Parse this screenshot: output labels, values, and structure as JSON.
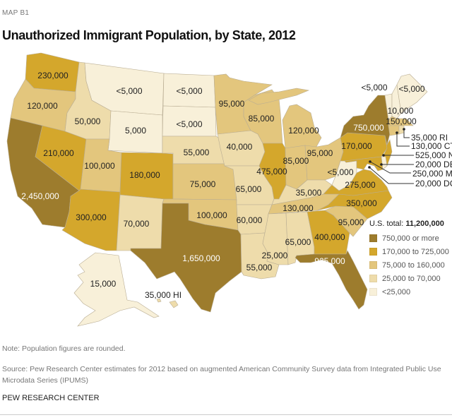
{
  "header": {
    "kicker": "MAP B1",
    "title": "Unauthorized Immigrant Population, by State, 2012"
  },
  "legend": {
    "total_label": "U.S. total:",
    "total_value": "11,200,000",
    "items": [
      {
        "label": "750,000 or more",
        "color": "#9d7c2d"
      },
      {
        "label": "170,000 to 725,000",
        "color": "#d4a72c"
      },
      {
        "label": "75,000 to 160,000",
        "color": "#e3c67d"
      },
      {
        "label": "25,000 to 70,000",
        "color": "#eedcab"
      },
      {
        "label": "<25,000",
        "color": "#f8f0d9"
      }
    ]
  },
  "states": {
    "WA": {
      "label": "230,000",
      "tier": 1
    },
    "OR": {
      "label": "120,000",
      "tier": 2
    },
    "CA": {
      "label": "2,450,000",
      "tier": 0
    },
    "NV": {
      "label": "210,000",
      "tier": 1
    },
    "ID": {
      "label": "50,000",
      "tier": 3
    },
    "MT": {
      "label": "<5,000",
      "tier": 4
    },
    "WY": {
      "label": "5,000",
      "tier": 4
    },
    "UT": {
      "label": "100,000",
      "tier": 2
    },
    "CO": {
      "label": "180,000",
      "tier": 1
    },
    "AZ": {
      "label": "300,000",
      "tier": 1
    },
    "NM": {
      "label": "70,000",
      "tier": 3
    },
    "ND": {
      "label": "<5,000",
      "tier": 4
    },
    "SD": {
      "label": "<5,000",
      "tier": 4
    },
    "NE": {
      "label": "55,000",
      "tier": 3
    },
    "KS": {
      "label": "75,000",
      "tier": 2
    },
    "OK": {
      "label": "100,000",
      "tier": 2
    },
    "TX": {
      "label": "1,650,000",
      "tier": 0
    },
    "MN": {
      "label": "95,000",
      "tier": 2
    },
    "WI": {
      "label": "85,000",
      "tier": 2
    },
    "IA": {
      "label": "40,000",
      "tier": 3
    },
    "MO": {
      "label": "65,000",
      "tier": 3
    },
    "AR": {
      "label": "60,000",
      "tier": 3
    },
    "LA": {
      "label": "55,000",
      "tier": 3
    },
    "IL": {
      "label": "475,000",
      "tier": 1
    },
    "MI": {
      "label": "120,000",
      "tier": 2
    },
    "IN": {
      "label": "85,000",
      "tier": 2
    },
    "OH": {
      "label": "95,000",
      "tier": 2
    },
    "KY": {
      "label": "35,000",
      "tier": 3
    },
    "TN": {
      "label": "130,000",
      "tier": 2
    },
    "MS": {
      "label": "25,000",
      "tier": 3
    },
    "AL": {
      "label": "65,000",
      "tier": 3
    },
    "GA": {
      "label": "400,000",
      "tier": 1
    },
    "FL": {
      "label": "925,000",
      "tier": 0
    },
    "SC": {
      "label": "95,000",
      "tier": 2
    },
    "NC": {
      "label": "350,000",
      "tier": 1
    },
    "VA": {
      "label": "275,000",
      "tier": 1
    },
    "WV": {
      "label": "<5,000",
      "tier": 4
    },
    "PA": {
      "label": "170,000",
      "tier": 1
    },
    "NY": {
      "label": "750,000",
      "tier": 0
    },
    "VT": {
      "label": "<5,000",
      "tier": 4
    },
    "NH": {
      "label": "10,000",
      "tier": 4
    },
    "ME": {
      "label": "<5,000",
      "tier": 4
    },
    "MA": {
      "label": "150,000",
      "tier": 2
    },
    "CT": {
      "label": "130,000 CT",
      "tier": 2
    },
    "RI": {
      "label": "35,000 RI",
      "tier": 3
    },
    "NJ": {
      "label": "525,000 NJ",
      "tier": 1
    },
    "DE": {
      "label": "20,000 DE",
      "tier": 4
    },
    "MD": {
      "label": "250,000 MD",
      "tier": 1
    },
    "DC": {
      "label": "20,000 DC",
      "tier": 4
    },
    "AK": {
      "label": "15,000",
      "tier": 4
    },
    "HI": {
      "label": "35,000 HI",
      "tier": 3
    }
  },
  "footer": {
    "note": "Note: Population figures are rounded.",
    "source": "Source: Pew Research Center estimates for 2012 based on augmented American Community Survey data from Integrated Public Use Microdata Series (IPUMS)",
    "brand": "PEW RESEARCH CENTER"
  }
}
